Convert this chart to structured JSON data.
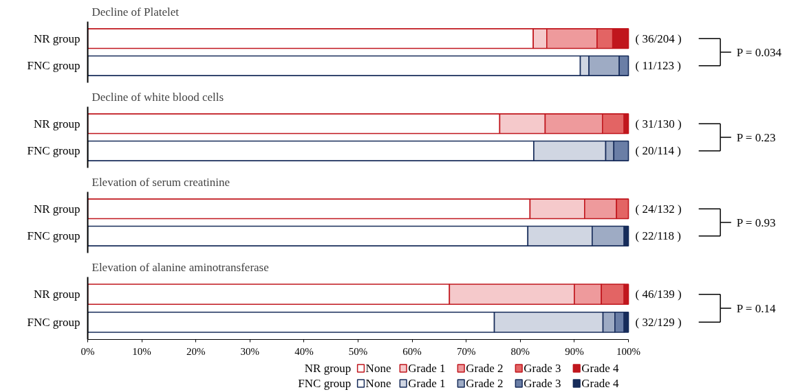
{
  "chart_data": [
    {
      "type": "bar",
      "orientation": "horizontal",
      "stacked": true,
      "title": "Decline of Platelet",
      "categories": [
        "NR group",
        "FNC group"
      ],
      "xlim": [
        0,
        100
      ],
      "tick_labels": "y",
      "grid": false,
      "legend": false,
      "series": [
        {
          "color": "#ffffff",
          "values": [
            82.4,
            null
          ]
        },
        {
          "color": "#f5c9cb",
          "values": [
            2.5,
            null
          ]
        },
        {
          "color": "#ee9a9c",
          "values": [
            9.3,
            null
          ]
        },
        {
          "color": "#e36464",
          "values": [
            2.9,
            null
          ]
        },
        {
          "color": "#c0161d",
          "values": [
            2.9,
            null
          ]
        },
        {
          "color": "#ffffff",
          "values": [
            null,
            91.1
          ]
        },
        {
          "color": "#d0d6e2",
          "values": [
            null,
            1.6
          ]
        },
        {
          "color": "#9eabc4",
          "values": [
            null,
            5.6
          ]
        },
        {
          "color": "#6a7ea6",
          "values": [
            null,
            1.7
          ]
        },
        {
          "color": "#172c5a",
          "values": [
            null,
            0
          ]
        }
      ],
      "annotations": [
        "( 36/204 )",
        "( 11/123 )",
        "P = 0.034"
      ]
    },
    {
      "type": "bar",
      "orientation": "horizontal",
      "stacked": true,
      "title": "Decline of white blood cells",
      "categories": [
        "NR group",
        "FNC group"
      ],
      "xlim": [
        0,
        100
      ],
      "tick_labels": "y",
      "grid": false,
      "legend": false,
      "series": [
        {
          "color": "#ffffff",
          "values": [
            76.2,
            null
          ]
        },
        {
          "color": "#f5c9cb",
          "values": [
            8.4,
            null
          ]
        },
        {
          "color": "#ee9a9c",
          "values": [
            10.6,
            null
          ]
        },
        {
          "color": "#e36464",
          "values": [
            4.0,
            null
          ]
        },
        {
          "color": "#c0161d",
          "values": [
            0.8,
            null
          ]
        },
        {
          "color": "#ffffff",
          "values": [
            null,
            82.5
          ]
        },
        {
          "color": "#d0d6e2",
          "values": [
            null,
            13.3
          ]
        },
        {
          "color": "#9eabc4",
          "values": [
            null,
            1.5
          ]
        },
        {
          "color": "#6a7ea6",
          "values": [
            null,
            2.7
          ]
        },
        {
          "color": "#172c5a",
          "values": [
            null,
            0
          ]
        }
      ],
      "annotations": [
        "( 31/130 )",
        "( 20/114 )",
        "P = 0.23"
      ]
    },
    {
      "type": "bar",
      "orientation": "horizontal",
      "stacked": true,
      "title": "Elevation of serum creatinine",
      "categories": [
        "NR group",
        "FNC group"
      ],
      "xlim": [
        0,
        100
      ],
      "tick_labels": "y",
      "grid": false,
      "legend": false,
      "series": [
        {
          "color": "#ffffff",
          "values": [
            81.8,
            null
          ]
        },
        {
          "color": "#f5c9cb",
          "values": [
            10.1,
            null
          ]
        },
        {
          "color": "#ee9a9c",
          "values": [
            5.9,
            null
          ]
        },
        {
          "color": "#e36464",
          "values": [
            2.2,
            null
          ]
        },
        {
          "color": "#c0161d",
          "values": [
            0,
            null
          ]
        },
        {
          "color": "#ffffff",
          "values": [
            null,
            81.4
          ]
        },
        {
          "color": "#d0d6e2",
          "values": [
            null,
            11.9
          ]
        },
        {
          "color": "#9eabc4",
          "values": [
            null,
            5.9
          ]
        },
        {
          "color": "#6a7ea6",
          "values": [
            null,
            0
          ]
        },
        {
          "color": "#172c5a",
          "values": [
            null,
            0.8
          ]
        }
      ],
      "annotations": [
        "( 24/132 )",
        "( 22/118 )",
        "P = 0.93"
      ]
    },
    {
      "type": "bar",
      "orientation": "horizontal",
      "stacked": true,
      "title": "Elevation of alanine aminotransferase",
      "categories": [
        "NR group",
        "FNC group"
      ],
      "xlim": [
        0,
        100
      ],
      "grid": false,
      "legend": "bottom",
      "xticks": [
        {
          "value": 0,
          "label": "0%"
        },
        {
          "value": 10,
          "label": "10%"
        },
        {
          "value": 20,
          "label": "20%"
        },
        {
          "value": 30,
          "label": "30%"
        },
        {
          "value": 40,
          "label": "40%"
        },
        {
          "value": 50,
          "label": "50%"
        },
        {
          "value": 60,
          "label": "60%"
        },
        {
          "value": 70,
          "label": "70%"
        },
        {
          "value": 80,
          "label": "80%"
        },
        {
          "value": 90,
          "label": "90%"
        },
        {
          "value": 100,
          "label": "100%"
        }
      ],
      "series": [
        {
          "name": "None",
          "color": "#ffffff",
          "values": [
            66.9,
            null
          ]
        },
        {
          "name": "Grade 1",
          "color": "#f5c9cb",
          "values": [
            23.1,
            null
          ]
        },
        {
          "name": "Grade 2",
          "color": "#ee9a9c",
          "values": [
            5.0,
            null
          ]
        },
        {
          "name": "Grade 3",
          "color": "#e36464",
          "values": [
            4.2,
            null
          ]
        },
        {
          "name": "Grade 4",
          "color": "#c0161d",
          "values": [
            0.8,
            null
          ]
        },
        {
          "name": "None",
          "color": "#ffffff",
          "values": [
            null,
            75.2
          ]
        },
        {
          "name": "Grade 1",
          "color": "#d0d6e2",
          "values": [
            null,
            20.1
          ]
        },
        {
          "name": "Grade 2",
          "color": "#9eabc4",
          "values": [
            null,
            2.2
          ]
        },
        {
          "name": "Grade 3",
          "color": "#6a7ea6",
          "values": [
            null,
            1.7
          ]
        },
        {
          "name": "Grade 4",
          "color": "#172c5a",
          "values": [
            null,
            0.8
          ]
        }
      ],
      "annotations": [
        "( 46/139 )",
        "( 32/129 )",
        "P = 0.14"
      ]
    }
  ]
}
